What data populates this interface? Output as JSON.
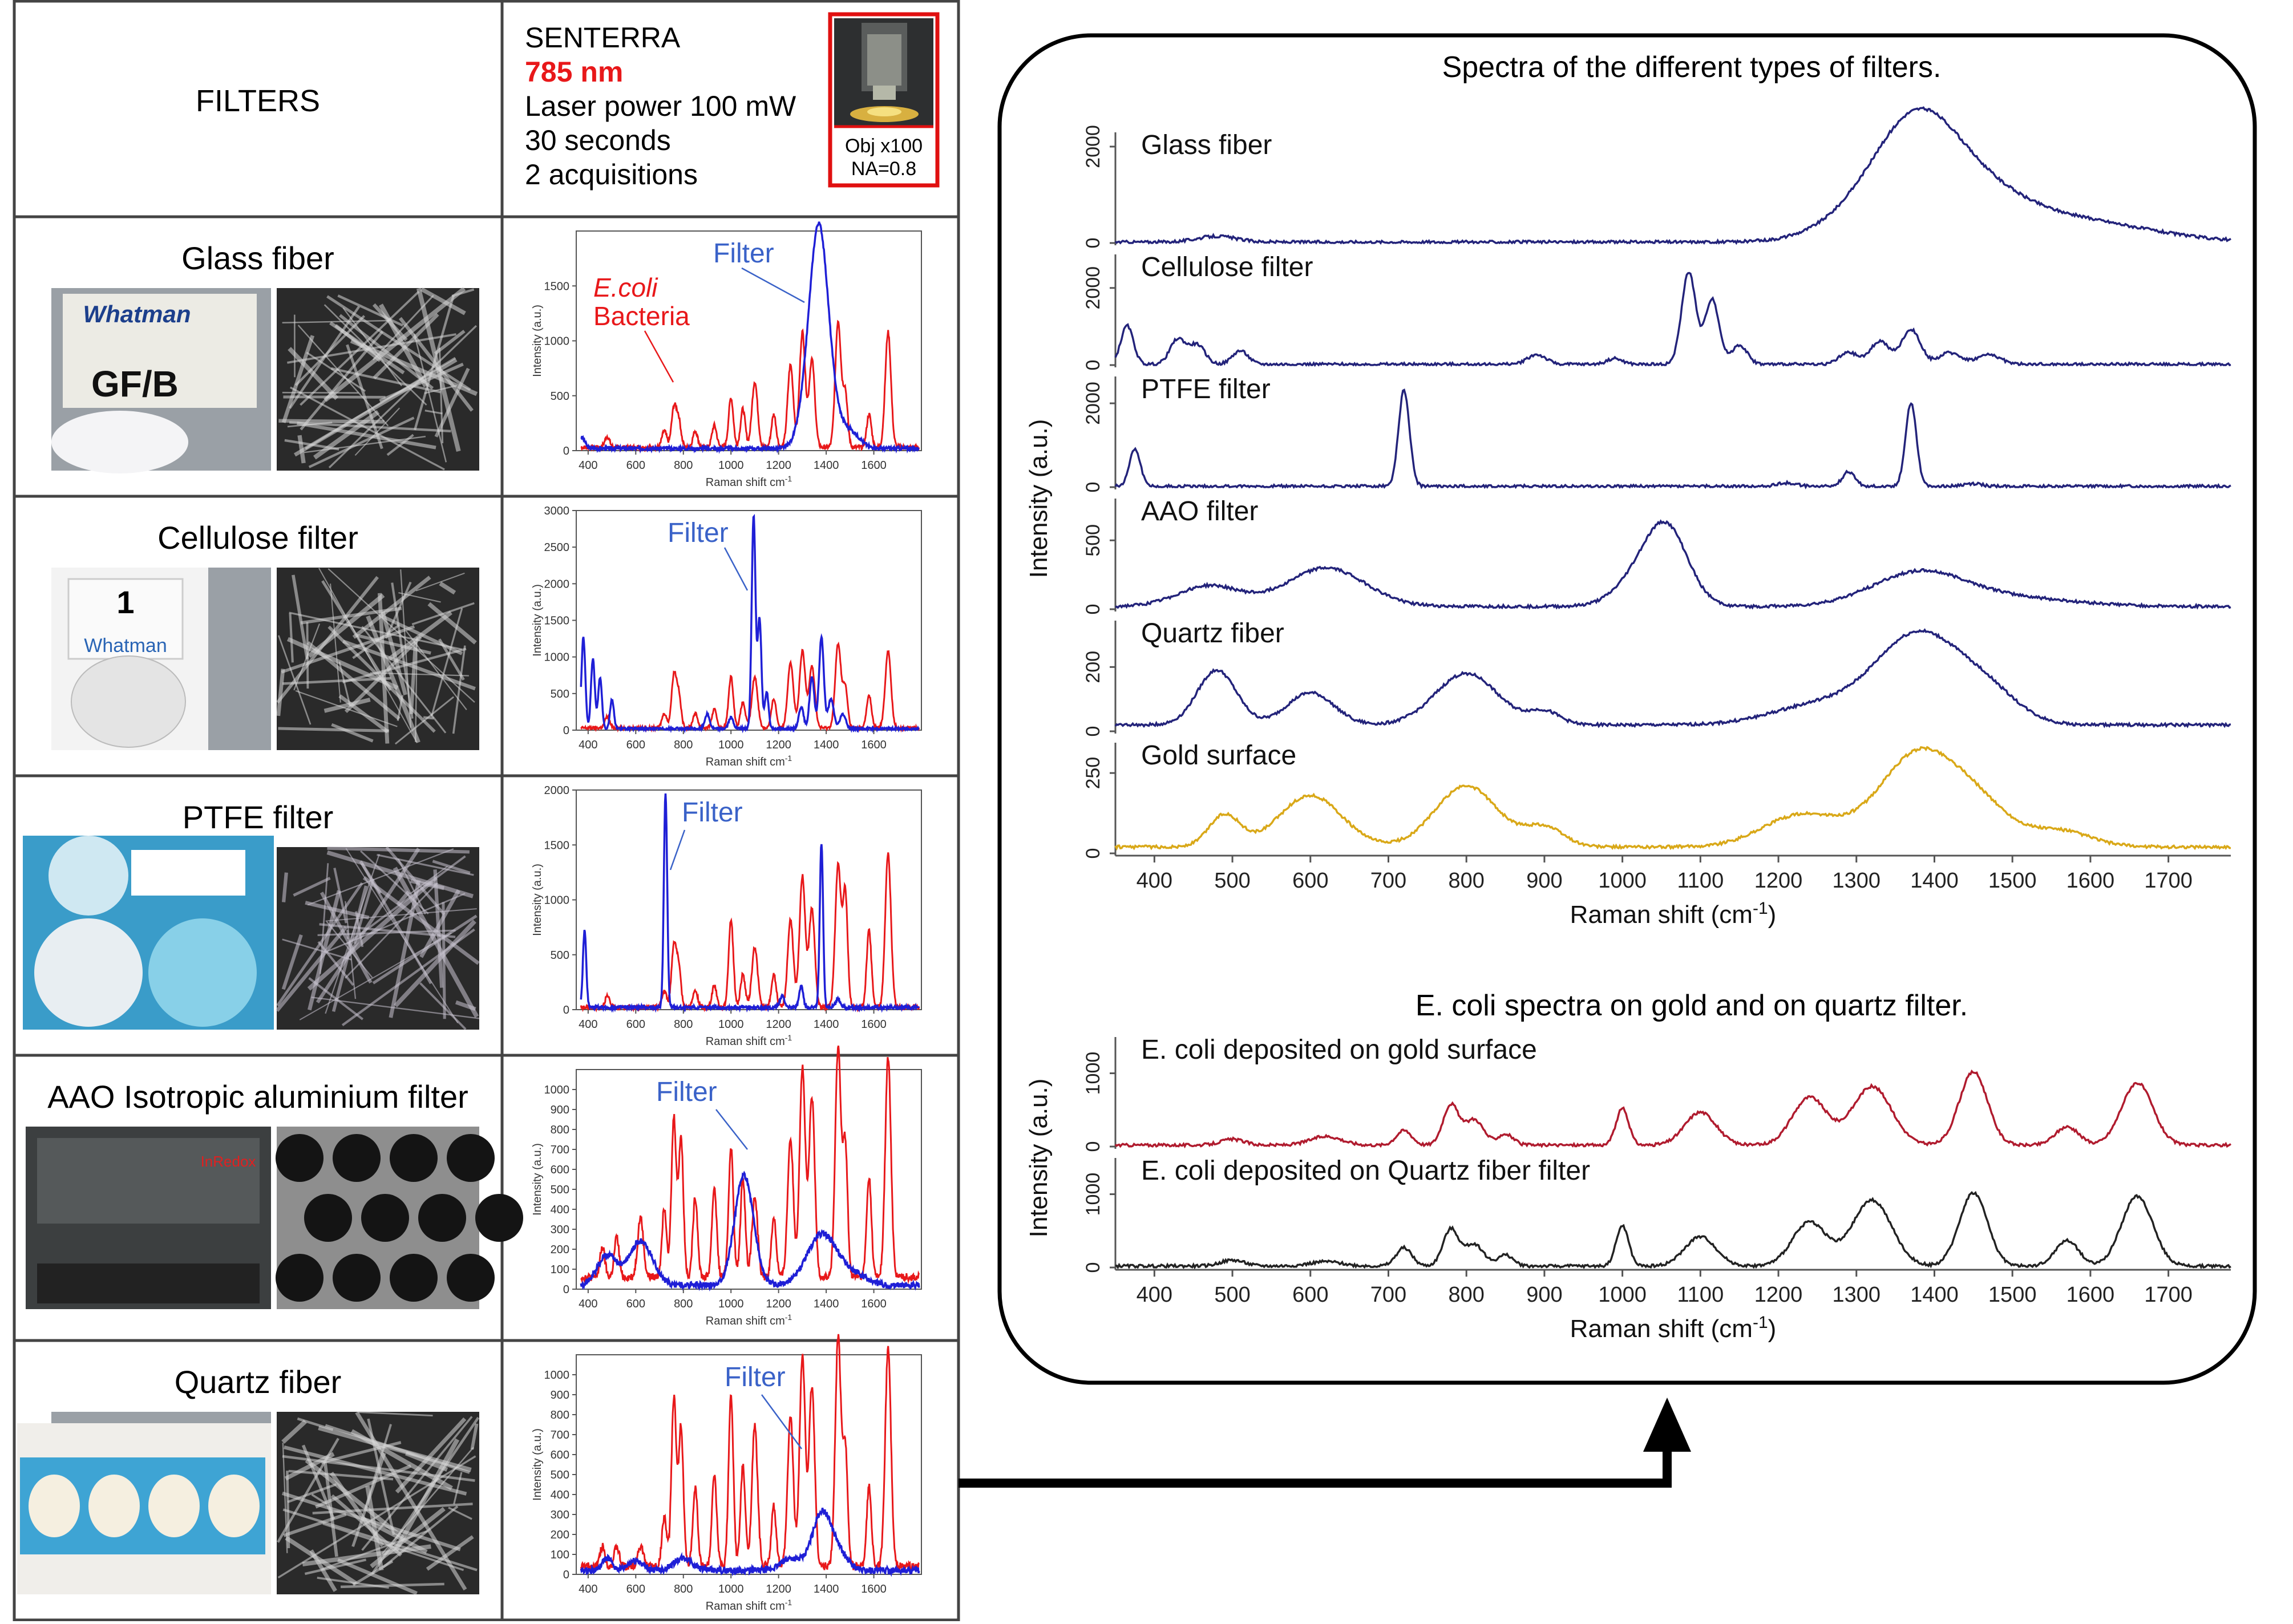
{
  "colors": {
    "filter": "#1f1fd6",
    "bacteria": "#e8181a",
    "navy": "#23237a",
    "gold": "#d9a818",
    "ecoli_gold": "#b01b2e",
    "ecoli_quartz": "#222222",
    "red_text": "#e8181a",
    "blue_text": "#3a62c8",
    "frame": "#000000"
  },
  "header": {
    "filters_label": "FILTERS",
    "instrument": "SENTERRA",
    "wavelength": "785 nm",
    "laser_power": "Laser power 100 mW",
    "time": "30 seconds",
    "acquisitions": "2 acquisitions",
    "objective": "Obj x100",
    "na": "NA=0.8"
  },
  "rows": [
    {
      "name": "Glass fiber",
      "label": "Glass fiber",
      "box_text": "Whatman",
      "box_sub": "GF/B",
      "filter_tag": "Filter",
      "bacteria_tag_italic": "E.coli",
      "bacteria_tag": "Bacteria",
      "ymax": 2000,
      "yticks": [
        0,
        500,
        1000,
        1500
      ],
      "filter_peaks": [
        [
          375,
          100,
          12
        ],
        [
          1335,
          600,
          40
        ],
        [
          1370,
          1300,
          35
        ],
        [
          1405,
          500,
          40
        ],
        [
          1500,
          150,
          40
        ]
      ],
      "bacteria_peaks": [
        [
          480,
          100,
          10
        ],
        [
          720,
          150,
          10
        ],
        [
          760,
          350,
          10
        ],
        [
          780,
          250,
          10
        ],
        [
          850,
          150,
          10
        ],
        [
          930,
          200,
          10
        ],
        [
          1000,
          450,
          10
        ],
        [
          1050,
          350,
          10
        ],
        [
          1100,
          600,
          12
        ],
        [
          1180,
          300,
          10
        ],
        [
          1250,
          750,
          12
        ],
        [
          1300,
          1050,
          12
        ],
        [
          1340,
          800,
          12
        ],
        [
          1450,
          1150,
          12
        ],
        [
          1480,
          500,
          10
        ],
        [
          1580,
          300,
          10
        ],
        [
          1660,
          1050,
          12
        ]
      ],
      "baseline": 30
    },
    {
      "name": "Cellulose filter",
      "label": "Cellulose filter",
      "box_text": "Whatman",
      "box_sub": "1",
      "filter_tag": "Filter",
      "ymax": 3000,
      "yticks": [
        0,
        500,
        1000,
        1500,
        2000,
        2500,
        3000
      ],
      "filter_peaks": [
        [
          380,
          1250,
          8
        ],
        [
          420,
          950,
          8
        ],
        [
          450,
          700,
          8
        ],
        [
          500,
          400,
          8
        ],
        [
          900,
          200,
          10
        ],
        [
          1000,
          150,
          10
        ],
        [
          1095,
          2900,
          8
        ],
        [
          1120,
          1500,
          8
        ],
        [
          1150,
          500,
          8
        ],
        [
          1295,
          300,
          10
        ],
        [
          1340,
          700,
          10
        ],
        [
          1380,
          1250,
          10
        ],
        [
          1420,
          400,
          12
        ],
        [
          1470,
          200,
          12
        ]
      ],
      "bacteria_peaks": [
        [
          480,
          150,
          10
        ],
        [
          720,
          200,
          10
        ],
        [
          760,
          700,
          10
        ],
        [
          780,
          450,
          10
        ],
        [
          850,
          200,
          10
        ],
        [
          930,
          250,
          10
        ],
        [
          1000,
          700,
          10
        ],
        [
          1050,
          350,
          10
        ],
        [
          1100,
          700,
          12
        ],
        [
          1180,
          400,
          10
        ],
        [
          1250,
          900,
          12
        ],
        [
          1300,
          1050,
          12
        ],
        [
          1340,
          850,
          12
        ],
        [
          1450,
          1150,
          12
        ],
        [
          1480,
          550,
          10
        ],
        [
          1580,
          450,
          10
        ],
        [
          1660,
          1050,
          12
        ]
      ],
      "baseline": 30
    },
    {
      "name": "PTFE filter",
      "label": "PTFE  filter",
      "box_text": "",
      "box_sub": "",
      "filter_tag": "Filter",
      "ymax": 2000,
      "yticks": [
        0,
        500,
        1000,
        1500,
        2000
      ],
      "filter_peaks": [
        [
          385,
          700,
          7
        ],
        [
          725,
          1950,
          7
        ],
        [
          1215,
          100,
          10
        ],
        [
          1295,
          200,
          8
        ],
        [
          1380,
          1500,
          7
        ],
        [
          1450,
          80,
          10
        ]
      ],
      "bacteria_peaks": [
        [
          480,
          100,
          10
        ],
        [
          720,
          150,
          10
        ],
        [
          760,
          550,
          10
        ],
        [
          780,
          350,
          10
        ],
        [
          850,
          150,
          10
        ],
        [
          930,
          200,
          10
        ],
        [
          1000,
          800,
          10
        ],
        [
          1050,
          300,
          10
        ],
        [
          1100,
          550,
          12
        ],
        [
          1180,
          300,
          10
        ],
        [
          1250,
          800,
          12
        ],
        [
          1300,
          1200,
          12
        ],
        [
          1340,
          900,
          12
        ],
        [
          1450,
          1300,
          12
        ],
        [
          1480,
          1050,
          10
        ],
        [
          1580,
          700,
          10
        ],
        [
          1660,
          1400,
          12
        ]
      ],
      "baseline": 20
    },
    {
      "name": "AAO Isotropic aluminium filter",
      "label": "AAO Isotropic aluminium filter",
      "box_text": "InRedox",
      "box_sub": "",
      "filter_tag": "Filter",
      "ymax": 1100,
      "yticks": [
        0,
        100,
        200,
        300,
        400,
        500,
        600,
        700,
        800,
        900,
        1000
      ],
      "filter_peaks": [
        [
          480,
          150,
          40
        ],
        [
          620,
          220,
          50
        ],
        [
          1055,
          550,
          40
        ],
        [
          1380,
          250,
          60
        ],
        [
          1500,
          60,
          60
        ]
      ],
      "bacteria_peaks": [
        [
          460,
          150,
          10
        ],
        [
          520,
          200,
          10
        ],
        [
          620,
          300,
          12
        ],
        [
          720,
          350,
          10
        ],
        [
          760,
          800,
          10
        ],
        [
          790,
          700,
          10
        ],
        [
          850,
          400,
          10
        ],
        [
          930,
          450,
          10
        ],
        [
          1000,
          650,
          10
        ],
        [
          1050,
          500,
          10
        ],
        [
          1100,
          400,
          12
        ],
        [
          1180,
          300,
          10
        ],
        [
          1250,
          700,
          12
        ],
        [
          1300,
          1050,
          12
        ],
        [
          1340,
          900,
          12
        ],
        [
          1450,
          1150,
          12
        ],
        [
          1480,
          650,
          10
        ],
        [
          1580,
          500,
          10
        ],
        [
          1660,
          1100,
          12
        ]
      ],
      "baseline": 60
    },
    {
      "name": "Quartz fiber",
      "label": "Quartz fiber",
      "box_text": "",
      "box_sub": "",
      "filter_tag": "Filter",
      "ymax": 1100,
      "yticks": [
        0,
        100,
        200,
        300,
        400,
        500,
        600,
        700,
        800,
        900,
        1000
      ],
      "filter_peaks": [
        [
          480,
          60,
          20
        ],
        [
          600,
          50,
          30
        ],
        [
          800,
          60,
          40
        ],
        [
          1250,
          60,
          40
        ],
        [
          1380,
          280,
          40
        ],
        [
          1450,
          80,
          40
        ]
      ],
      "bacteria_peaks": [
        [
          460,
          100,
          10
        ],
        [
          520,
          100,
          10
        ],
        [
          620,
          100,
          12
        ],
        [
          720,
          250,
          10
        ],
        [
          760,
          850,
          10
        ],
        [
          790,
          700,
          10
        ],
        [
          850,
          400,
          10
        ],
        [
          930,
          450,
          10
        ],
        [
          1000,
          850,
          10
        ],
        [
          1050,
          500,
          10
        ],
        [
          1100,
          700,
          12
        ],
        [
          1180,
          300,
          10
        ],
        [
          1250,
          750,
          12
        ],
        [
          1300,
          1050,
          12
        ],
        [
          1340,
          900,
          12
        ],
        [
          1450,
          1150,
          12
        ],
        [
          1480,
          600,
          10
        ],
        [
          1580,
          400,
          10
        ],
        [
          1660,
          1100,
          12
        ]
      ],
      "baseline": 40
    }
  ],
  "small_x_ticks": [
    "400",
    "600",
    "800",
    "1000",
    "1200",
    "1400",
    "1600"
  ],
  "small_xlabel": "Raman shift cm",
  "small_xlabel_sup": "-1",
  "small_ylabel": "Intensity (a.u.)",
  "right_panel": {
    "title_top": "Spectra of the different types of filters.",
    "title_bottom": "E. coli spectra on gold and on  quartz filter.",
    "ylabel": "Intensity (a.u.)",
    "xlabel": "Raman shift (cm",
    "xlabel_sup": "-1",
    "xlabel_end": ")",
    "x_ticks": [
      "400",
      "500",
      "600",
      "700",
      "800",
      "900",
      "1000",
      "1100",
      "1200",
      "1300",
      "1400",
      "1500",
      "1600",
      "1700"
    ]
  },
  "chart_data": [
    {
      "type": "line",
      "title": "Spectra of the different types of filters.",
      "xlabel": "Raman shift (cm-1)",
      "ylabel": "Intensity (a.u.)",
      "xlim": [
        350,
        1780
      ],
      "series": [
        {
          "name": "Glass fiber",
          "ymax": 2000,
          "yticks": [
            0,
            2000
          ],
          "color": "navy",
          "peaks": [
            [
              480,
              120,
              25
            ],
            [
              1330,
              800,
              60
            ],
            [
              1380,
              1700,
              50
            ],
            [
              1450,
              900,
              60
            ],
            [
              1550,
              400,
              80
            ],
            [
              1650,
              150,
              80
            ]
          ]
        },
        {
          "name": "Cellulose filter",
          "ymax": 2500,
          "yticks": [
            0,
            2000
          ],
          "color": "navy",
          "peaks": [
            [
              365,
              1000,
              8
            ],
            [
              430,
              650,
              10
            ],
            [
              455,
              500,
              10
            ],
            [
              510,
              350,
              10
            ],
            [
              890,
              250,
              12
            ],
            [
              990,
              150,
              10
            ],
            [
              1085,
              2400,
              9
            ],
            [
              1115,
              1700,
              9
            ],
            [
              1150,
              500,
              10
            ],
            [
              1290,
              300,
              12
            ],
            [
              1330,
              600,
              12
            ],
            [
              1370,
              900,
              12
            ],
            [
              1420,
              300,
              14
            ],
            [
              1470,
              250,
              15
            ]
          ]
        },
        {
          "name": "PTFE  filter",
          "ymax": 2300,
          "yticks": [
            0,
            2000
          ],
          "color": "navy",
          "peaks": [
            [
              375,
              900,
              7
            ],
            [
              720,
              2300,
              7
            ],
            [
              1210,
              80,
              12
            ],
            [
              1290,
              350,
              8
            ],
            [
              1370,
              2000,
              7
            ],
            [
              1450,
              60,
              12
            ]
          ]
        },
        {
          "name": "AAO filter",
          "ymax": 700,
          "yticks": [
            0,
            500
          ],
          "color": "navy",
          "peaks": [
            [
              470,
              150,
              40
            ],
            [
              620,
              280,
              50
            ],
            [
              1040,
              350,
              35
            ],
            [
              1060,
              300,
              25
            ],
            [
              1380,
              240,
              60
            ],
            [
              1500,
              60,
              80
            ]
          ]
        },
        {
          "name": "Quartz fiber",
          "ymax": 300,
          "yticks": [
            0,
            200
          ],
          "color": "navy",
          "peaks": [
            [
              480,
              170,
              25
            ],
            [
              600,
              100,
              30
            ],
            [
              800,
              160,
              40
            ],
            [
              900,
              40,
              20
            ],
            [
              1250,
              60,
              60
            ],
            [
              1380,
              280,
              55
            ],
            [
              1470,
              80,
              40
            ]
          ]
        },
        {
          "name": "Gold surface",
          "ymax": 300,
          "yticks": [
            0,
            250
          ],
          "color": "gold",
          "peaks": [
            [
              490,
              100,
              20
            ],
            [
              600,
              160,
              40
            ],
            [
              800,
              190,
              40
            ],
            [
              900,
              60,
              25
            ],
            [
              1230,
              100,
              50
            ],
            [
              1380,
              290,
              50
            ],
            [
              1460,
              100,
              40
            ],
            [
              1560,
              50,
              40
            ]
          ]
        }
      ]
    },
    {
      "type": "line",
      "title": "E. coli spectra on gold and on  quartz filter.",
      "xlabel": "Raman shift (cm-1)",
      "ylabel": "Intensity (a.u.)",
      "xlim": [
        350,
        1780
      ],
      "series": [
        {
          "name": "E. coli deposited on gold surface",
          "ymax": 1300,
          "yticks": [
            0,
            1000
          ],
          "color": "ecoli_gold",
          "peaks": [
            [
              500,
              80,
              15
            ],
            [
              620,
              120,
              20
            ],
            [
              720,
              200,
              10
            ],
            [
              780,
              550,
              10
            ],
            [
              810,
              350,
              12
            ],
            [
              850,
              150,
              10
            ],
            [
              1000,
              500,
              8
            ],
            [
              1100,
              450,
              20
            ],
            [
              1240,
              650,
              22
            ],
            [
              1320,
              800,
              25
            ],
            [
              1450,
              1000,
              18
            ],
            [
              1570,
              250,
              15
            ],
            [
              1660,
              850,
              20
            ]
          ]
        },
        {
          "name": "E. coli deposited on Quartz fiber filter",
          "ymax": 1300,
          "yticks": [
            0,
            1000
          ],
          "color": "ecoli_quartz",
          "peaks": [
            [
              500,
              80,
              15
            ],
            [
              620,
              60,
              20
            ],
            [
              720,
              250,
              10
            ],
            [
              780,
              500,
              10
            ],
            [
              810,
              300,
              12
            ],
            [
              850,
              150,
              10
            ],
            [
              1000,
              550,
              8
            ],
            [
              1100,
              400,
              20
            ],
            [
              1240,
              600,
              22
            ],
            [
              1320,
              900,
              25
            ],
            [
              1450,
              1000,
              18
            ],
            [
              1570,
              350,
              15
            ],
            [
              1660,
              950,
              20
            ]
          ]
        }
      ]
    }
  ]
}
